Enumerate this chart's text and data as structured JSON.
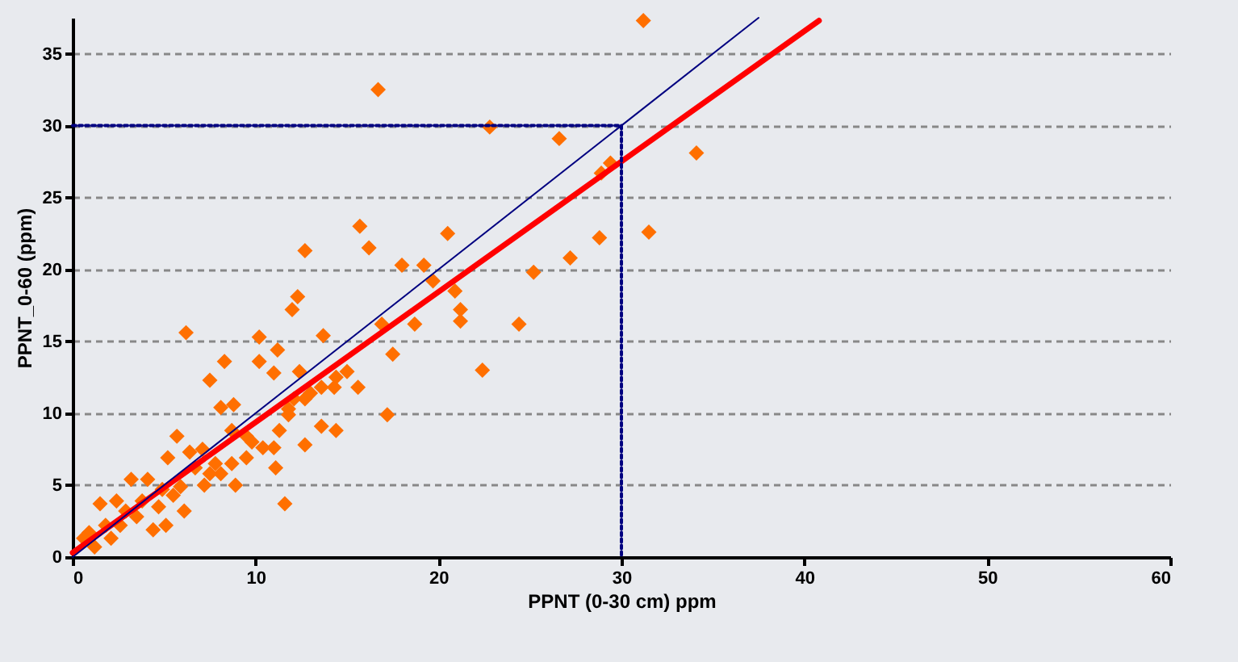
{
  "chart_data": {
    "type": "scatter",
    "xlabel": "PPNT (0-30 cm) ppm",
    "ylabel": "PPNT_0-60 (ppm)",
    "xlim": [
      0,
      60
    ],
    "xticks": [
      0,
      10,
      20,
      30,
      40,
      50,
      60
    ],
    "ylim": [
      0,
      37.5
    ],
    "yticks": [
      0,
      5,
      10,
      15,
      20,
      25,
      30,
      35
    ],
    "grid": "y",
    "marker": "diamond",
    "series": [
      {
        "color": "#ff6f00",
        "x": [
          16.7,
          22.8,
          26.6,
          31.2,
          29.4,
          28.9,
          34.1,
          31.5,
          28.8,
          27.2,
          25.2,
          24.4,
          22.4,
          20.5,
          15.7,
          16.2,
          12.7,
          18.0,
          19.2,
          19.7,
          20.9,
          21.2,
          21.2,
          18.7,
          16.9,
          17.5,
          17.2,
          12.3,
          12.0,
          13.7,
          10.2,
          11.2,
          6.2,
          8.3,
          10.2,
          11.0,
          7.5,
          12.4,
          15.0,
          15.6,
          14.3,
          13.6,
          8.1,
          8.8,
          12.7,
          11.8,
          11.3,
          13.6,
          14.4,
          12.7,
          11.0,
          11.1,
          11.6,
          9.5,
          8.7,
          8.7,
          8.9,
          8.1,
          5.7,
          6.4,
          5.2,
          6.7,
          3.2,
          4.1,
          1.5,
          2.4,
          3.5,
          4.7,
          5.5,
          6.1,
          7.2,
          7.5,
          0.9,
          0.6,
          1.2,
          2.1,
          2.6,
          1.8,
          4.4,
          5.1,
          3.8,
          2.9,
          9.8,
          10.4,
          11.8,
          12.1,
          13.0,
          14.4,
          7.8,
          7.1,
          9.5,
          5.9,
          4.9
        ],
        "values": [
          32.5,
          29.9,
          29.1,
          37.3,
          27.4,
          26.7,
          28.1,
          22.6,
          22.2,
          20.8,
          19.8,
          16.2,
          13.0,
          22.5,
          23.0,
          21.5,
          21.3,
          20.3,
          20.3,
          19.2,
          18.5,
          17.2,
          16.4,
          16.2,
          16.2,
          14.1,
          9.9,
          18.1,
          17.2,
          15.4,
          15.3,
          14.4,
          15.6,
          13.6,
          13.6,
          12.8,
          12.3,
          12.9,
          12.9,
          11.8,
          11.8,
          11.8,
          10.4,
          10.6,
          11.0,
          9.9,
          8.8,
          9.1,
          8.8,
          7.8,
          7.6,
          6.2,
          3.7,
          8.4,
          8.8,
          6.5,
          5.0,
          5.8,
          8.4,
          7.3,
          6.9,
          6.2,
          5.4,
          5.4,
          3.7,
          3.9,
          2.8,
          3.5,
          4.3,
          3.2,
          5.0,
          5.8,
          1.7,
          1.3,
          0.7,
          1.3,
          2.2,
          2.2,
          1.9,
          2.2,
          3.9,
          3.2,
          8.0,
          7.6,
          10.3,
          11.0,
          11.4,
          12.5,
          6.5,
          7.5,
          6.9,
          4.9,
          4.7
        ]
      },
      {
        "type": "line",
        "color": "#ff0000",
        "marker": "none",
        "line_style": "solid",
        "x": [
          0,
          40.8
        ],
        "values": [
          0.3,
          37.3
        ]
      },
      {
        "type": "line",
        "color": "#000080",
        "marker": "none",
        "line_style": "solid",
        "x": [
          0,
          37.5
        ],
        "values": [
          0,
          37.5
        ]
      },
      {
        "type": "line",
        "color": "#000080",
        "marker": "none",
        "line_style": "dotted",
        "x": [
          0,
          30,
          30
        ],
        "values": [
          30,
          30,
          0
        ]
      }
    ]
  }
}
